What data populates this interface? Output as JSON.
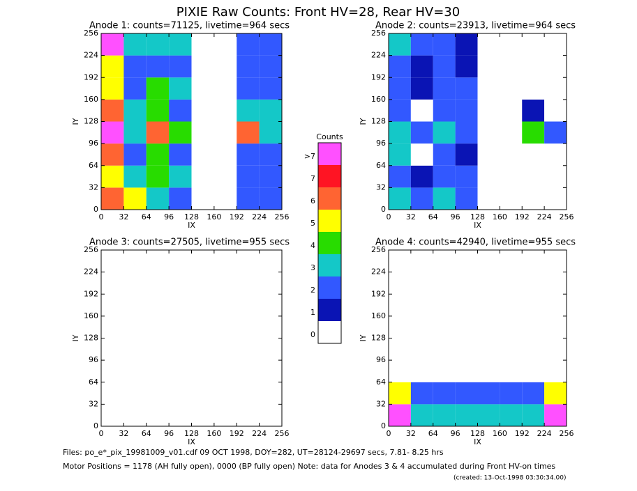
{
  "title": "PIXIE Raw Counts:  Front HV=28, Rear HV=30",
  "chart_data": [
    {
      "type": "heatmap",
      "title": "Anode 1: counts=71125, livetime=964 secs",
      "xlabel": "IX",
      "ylabel": "IY",
      "xlim": [
        0,
        256
      ],
      "ylim": [
        0,
        256
      ],
      "xticks": [
        0,
        32,
        64,
        96,
        128,
        160,
        192,
        224,
        256
      ],
      "yticks": [
        0,
        32,
        64,
        96,
        128,
        160,
        192,
        224,
        256
      ],
      "xbins": [
        0,
        32,
        64,
        96,
        128,
        160,
        192,
        224,
        256
      ],
      "ybins": [
        0,
        32,
        64,
        96,
        128,
        160,
        192,
        224,
        256
      ],
      "z": [
        [
          6,
          5,
          3,
          2,
          0,
          0,
          2,
          2
        ],
        [
          5,
          3,
          4,
          3,
          0,
          0,
          2,
          2
        ],
        [
          6,
          2,
          4,
          2,
          0,
          0,
          2,
          2
        ],
        [
          8,
          3,
          6,
          4,
          0,
          0,
          6,
          3
        ],
        [
          6,
          3,
          4,
          2,
          0,
          0,
          3,
          3
        ],
        [
          5,
          2,
          4,
          3,
          0,
          0,
          2,
          2
        ],
        [
          5,
          2,
          2,
          2,
          0,
          0,
          2,
          2
        ],
        [
          8,
          3,
          3,
          3,
          0,
          0,
          2,
          2
        ]
      ]
    },
    {
      "type": "heatmap",
      "title": "Anode 2: counts=23913, livetime=964 secs",
      "xlabel": "IX",
      "ylabel": "IY",
      "xlim": [
        0,
        256
      ],
      "ylim": [
        0,
        256
      ],
      "xticks": [
        0,
        32,
        64,
        96,
        128,
        160,
        192,
        224,
        256
      ],
      "yticks": [
        0,
        32,
        64,
        96,
        128,
        160,
        192,
        224,
        256
      ],
      "xbins": [
        0,
        32,
        64,
        96,
        128,
        160,
        192,
        224,
        256
      ],
      "ybins": [
        0,
        32,
        64,
        96,
        128,
        160,
        192,
        224,
        256
      ],
      "z": [
        [
          3,
          2,
          3,
          2,
          0,
          0,
          0,
          0
        ],
        [
          2,
          1,
          2,
          2,
          0,
          0,
          0,
          0
        ],
        [
          3,
          0,
          2,
          1,
          0,
          0,
          0,
          0
        ],
        [
          3,
          2,
          3,
          2,
          0,
          0,
          4,
          2
        ],
        [
          2,
          0,
          2,
          2,
          0,
          0,
          1,
          0
        ],
        [
          2,
          1,
          2,
          2,
          0,
          0,
          0,
          0
        ],
        [
          2,
          1,
          2,
          1,
          0,
          0,
          0,
          0
        ],
        [
          3,
          2,
          2,
          1,
          0,
          0,
          0,
          0
        ]
      ]
    },
    {
      "type": "heatmap",
      "title": "Anode 3: counts=27505, livetime=955 secs",
      "xlabel": "IX",
      "ylabel": "IY",
      "xlim": [
        0,
        256
      ],
      "ylim": [
        0,
        256
      ],
      "xticks": [
        0,
        32,
        64,
        96,
        128,
        160,
        192,
        224,
        256
      ],
      "yticks": [
        0,
        32,
        64,
        96,
        128,
        160,
        192,
        224,
        256
      ],
      "xbins": [
        0,
        32,
        64,
        96,
        128,
        160,
        192,
        224,
        256
      ],
      "ybins": [
        0,
        32,
        64,
        96,
        128,
        160,
        192,
        224,
        256
      ],
      "z": [
        [
          0,
          0,
          0,
          0,
          0,
          0,
          0,
          0
        ],
        [
          0,
          0,
          0,
          0,
          0,
          0,
          0,
          0
        ],
        [
          0,
          0,
          0,
          0,
          0,
          0,
          0,
          0
        ],
        [
          0,
          0,
          0,
          0,
          0,
          0,
          0,
          0
        ],
        [
          0,
          0,
          0,
          0,
          0,
          0,
          0,
          0
        ],
        [
          0,
          0,
          0,
          0,
          0,
          0,
          0,
          0
        ],
        [
          0,
          0,
          0,
          0,
          0,
          0,
          0,
          0
        ],
        [
          0,
          0,
          0,
          0,
          0,
          0,
          0,
          0
        ]
      ]
    },
    {
      "type": "heatmap",
      "title": "Anode 4: counts=42940, livetime=955 secs",
      "xlabel": "IX",
      "ylabel": "IY",
      "xlim": [
        0,
        256
      ],
      "ylim": [
        0,
        256
      ],
      "xticks": [
        0,
        32,
        64,
        96,
        128,
        160,
        192,
        224,
        256
      ],
      "yticks": [
        0,
        32,
        64,
        96,
        128,
        160,
        192,
        224,
        256
      ],
      "xbins": [
        0,
        32,
        64,
        96,
        128,
        160,
        192,
        224,
        256
      ],
      "ybins": [
        0,
        32,
        64,
        96,
        128,
        160,
        192,
        224,
        256
      ],
      "z": [
        [
          8,
          3,
          3,
          3,
          3,
          3,
          3,
          8
        ],
        [
          5,
          2,
          2,
          2,
          2,
          2,
          2,
          5
        ],
        [
          0,
          0,
          0,
          0,
          0,
          0,
          0,
          0
        ],
        [
          0,
          0,
          0,
          0,
          0,
          0,
          0,
          0
        ],
        [
          0,
          0,
          0,
          0,
          0,
          0,
          0,
          0
        ],
        [
          0,
          0,
          0,
          0,
          0,
          0,
          0,
          0
        ],
        [
          0,
          0,
          0,
          0,
          0,
          0,
          0,
          0
        ],
        [
          0,
          0,
          0,
          0,
          0,
          0,
          0,
          0
        ]
      ]
    }
  ],
  "colorbar": {
    "title": "Counts",
    "ticks": [
      0,
      1,
      2,
      3,
      4,
      5,
      6,
      7,
      {
        "value": 8,
        "label": ">7"
      }
    ],
    "colors": [
      "#ffffff",
      "#0a14b4",
      "#3258ff",
      "#14c8c8",
      "#28dc00",
      "#ffff00",
      "#ff6432",
      "#ff1423",
      "#ff50ff"
    ]
  },
  "footer": [
    "Files: po_e*_pix_19981009_v01.cdf    09 OCT 1998, DOY=282, UT=28124-29697 secs,  7.81- 8.25 hrs",
    "Motor Positions = 1178 (AH fully open), 0000 (BP fully open)    Note: data for Anodes 3 & 4 accumulated during Front HV-on times",
    "(created: 13-Oct-1998 03:30:34.00)"
  ]
}
